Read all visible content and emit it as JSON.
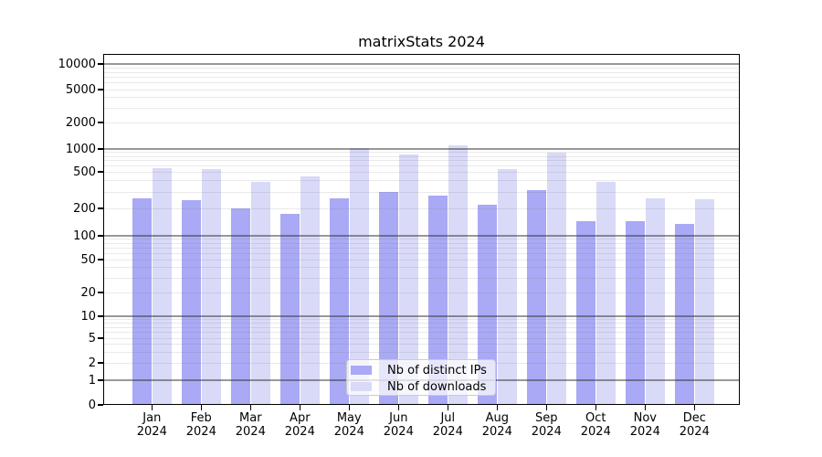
{
  "title": "matrixStats 2024",
  "chart_data": {
    "type": "bar",
    "title": "matrixStats 2024",
    "categories": [
      {
        "month": "Jan",
        "year": "2024"
      },
      {
        "month": "Feb",
        "year": "2024"
      },
      {
        "month": "Mar",
        "year": "2024"
      },
      {
        "month": "Apr",
        "year": "2024"
      },
      {
        "month": "May",
        "year": "2024"
      },
      {
        "month": "Jun",
        "year": "2024"
      },
      {
        "month": "Jul",
        "year": "2024"
      },
      {
        "month": "Aug",
        "year": "2024"
      },
      {
        "month": "Sep",
        "year": "2024"
      },
      {
        "month": "Oct",
        "year": "2024"
      },
      {
        "month": "Nov",
        "year": "2024"
      },
      {
        "month": "Dec",
        "year": "2024"
      }
    ],
    "series": [
      {
        "name": "Nb of distinct IPs",
        "color": "#a9a9f5",
        "values": [
          260,
          245,
          200,
          175,
          255,
          305,
          275,
          220,
          315,
          145,
          145,
          135
        ]
      },
      {
        "name": "Nb of downloads",
        "color": "#d9d9f8",
        "values": [
          565,
          545,
          385,
          450,
          1025,
          840,
          1100,
          545,
          890,
          385,
          260,
          250
        ]
      }
    ],
    "y_axis": {
      "scale": "log-with-zero",
      "ticks": [
        0,
        1,
        2,
        5,
        10,
        20,
        50,
        100,
        200,
        500,
        1000,
        2000,
        5000,
        10000
      ],
      "major_gridlines": [
        1,
        10,
        100,
        1000,
        10000
      ],
      "ylim": [
        0,
        13000
      ]
    },
    "grid": "horizontal major + log minor gridlines",
    "legend_position": "lower center, inside plot"
  },
  "colors": {
    "bar_distinct_ips": "#a9a9f5",
    "bar_downloads": "#d9d9f8",
    "grid_major": "rgba(50,50,50,0.50)",
    "grid_minor": "rgba(120,120,120,0.16)",
    "frame": "#000000",
    "background": "#ffffff"
  }
}
